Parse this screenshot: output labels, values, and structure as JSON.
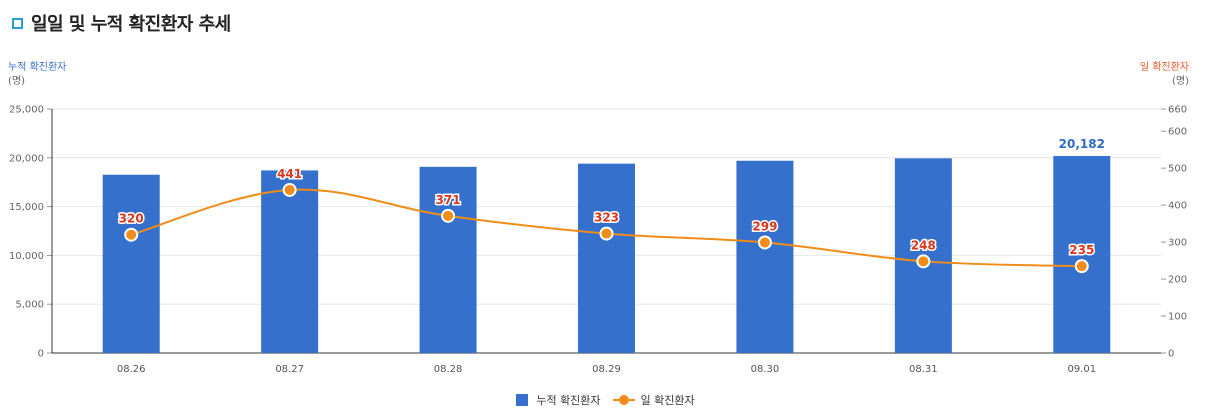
{
  "header": {
    "title": "일일 및 누적 확진환자 추세"
  },
  "axes": {
    "left_title": "누적 확진환자",
    "left_unit": "(명)",
    "right_title": "일 확진환자",
    "right_unit": "(명)"
  },
  "legend": {
    "bar_label": "누적 확진환자",
    "line_label": "일 확진환자"
  },
  "colors": {
    "bar": "#3470cc",
    "line": "#f08c1a",
    "bar_label": "#2f6bc4",
    "line_label": "#d9381e",
    "title_icon": "#2a9fd6"
  },
  "chart_data": {
    "type": "bar+line",
    "categories": [
      "08.26",
      "08.27",
      "08.28",
      "08.29",
      "08.30",
      "08.31",
      "09.01"
    ],
    "series": [
      {
        "name": "누적 확진환자",
        "type": "bar",
        "axis": "left",
        "values": [
          18265,
          18706,
          19077,
          19400,
          19699,
          19947,
          20182
        ],
        "shown_labels": [
          "",
          "",
          "",
          "",
          "",
          "",
          "20,182"
        ]
      },
      {
        "name": "일 확진환자",
        "type": "line",
        "axis": "right",
        "values": [
          320,
          441,
          371,
          323,
          299,
          248,
          235
        ],
        "shown_labels": [
          "320",
          "441",
          "371",
          "323",
          "299",
          "248",
          "235"
        ]
      }
    ],
    "left_axis": {
      "ylim": [
        0,
        25000
      ],
      "ticks": [
        "0",
        "5,000",
        "10,000",
        "15,000",
        "20,000",
        "25,000"
      ],
      "tick_values": [
        0,
        5000,
        10000,
        15000,
        20000,
        25000
      ]
    },
    "right_axis": {
      "ylim": [
        0,
        660
      ],
      "ticks": [
        "0",
        "100",
        "200",
        "300",
        "400",
        "500",
        "600",
        "660"
      ],
      "tick_values": [
        0,
        100,
        200,
        300,
        400,
        500,
        600,
        660
      ]
    },
    "grid": true,
    "legend_position": "bottom"
  }
}
